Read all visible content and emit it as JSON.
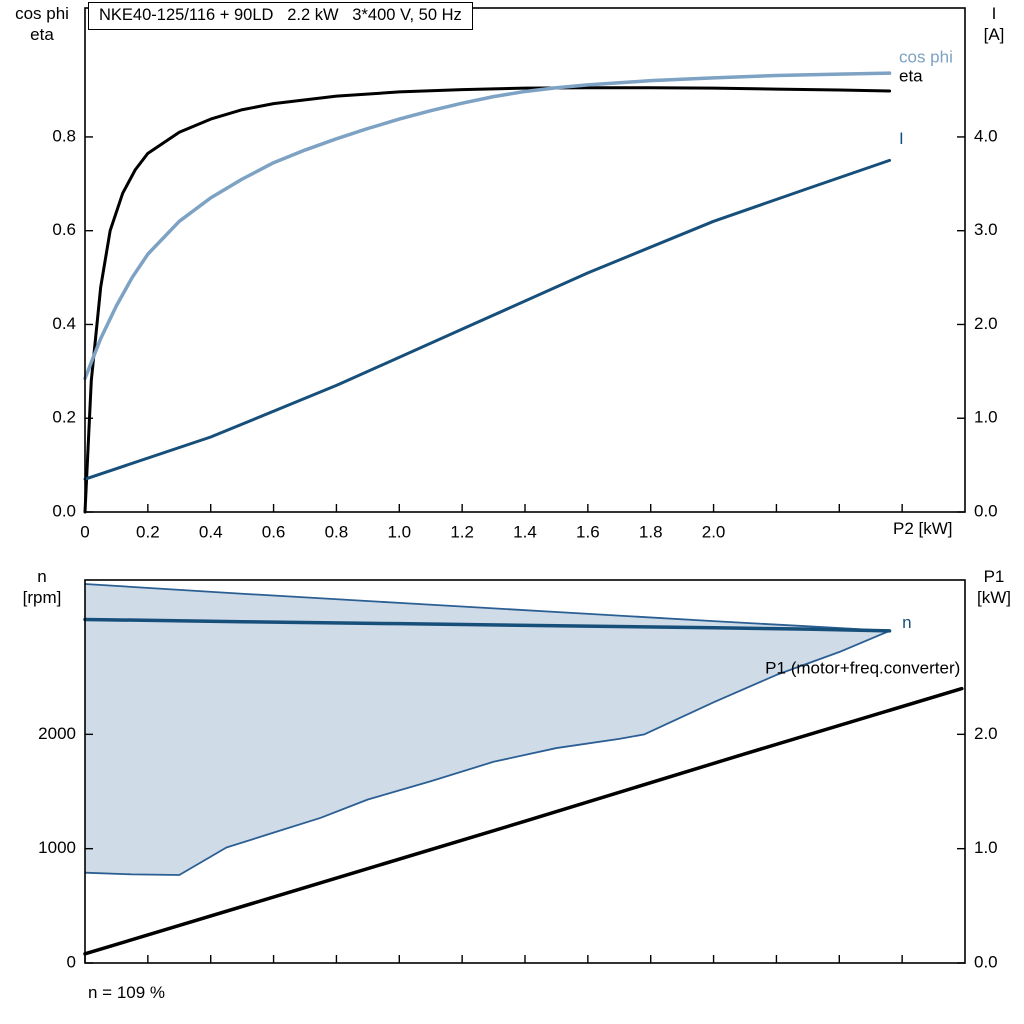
{
  "colors": {
    "eta": "#000000",
    "cos_phi": "#7da2c3",
    "current": "#174f7b",
    "speed": "#174f7b",
    "p1_line": "#000000",
    "band_fill": "#cfdbe7",
    "band_edge": "#2b5f93"
  },
  "chart_data": [
    {
      "type": "line",
      "panel": "motor-efficiency",
      "title": "NKE40-125/116 + 90LD   2.2 kW   3*400 V, 50 Hz",
      "x_axis": {
        "label": "P2 [kW]",
        "min": 0,
        "max": 2.8,
        "ticks": [
          {
            "v": 0,
            "label": "0"
          },
          {
            "v": 0.2,
            "label": "0.2"
          },
          {
            "v": 0.4,
            "label": "0.4"
          },
          {
            "v": 0.6,
            "label": "0.6"
          },
          {
            "v": 0.8,
            "label": "0.8"
          },
          {
            "v": 1.0,
            "label": "1.0"
          },
          {
            "v": 1.2,
            "label": "1.2"
          },
          {
            "v": 1.4,
            "label": "1.4"
          },
          {
            "v": 1.6,
            "label": "1.6"
          },
          {
            "v": 1.8,
            "label": "1.8"
          },
          {
            "v": 2.0,
            "label": "2.0"
          },
          {
            "v": 2.2,
            "label": ""
          },
          {
            "v": 2.4,
            "label": ""
          },
          {
            "v": 2.6,
            "label": ""
          }
        ]
      },
      "y_left": {
        "label_lines": [
          "cos phi",
          "eta"
        ],
        "min": 0,
        "max": 1.075,
        "ticks": [
          {
            "v": 0,
            "label": "0.0"
          },
          {
            "v": 0.2,
            "label": "0.2"
          },
          {
            "v": 0.4,
            "label": "0.4"
          },
          {
            "v": 0.6,
            "label": "0.6"
          },
          {
            "v": 0.8,
            "label": "0.8"
          }
        ]
      },
      "y_right": {
        "label_lines": [
          "I",
          "[A]"
        ],
        "min": 0,
        "max": 5.375,
        "ticks": [
          {
            "v": 0,
            "label": "0.0"
          },
          {
            "v": 1,
            "label": "1.0"
          },
          {
            "v": 2,
            "label": "2.0"
          },
          {
            "v": 3,
            "label": "3.0"
          },
          {
            "v": 4,
            "label": "4.0"
          }
        ]
      },
      "series": [
        {
          "name": "eta",
          "axis": "left",
          "color": "#000000",
          "width": 3,
          "points": [
            [
              0,
              0
            ],
            [
              0.02,
              0.28
            ],
            [
              0.05,
              0.48
            ],
            [
              0.08,
              0.6
            ],
            [
              0.12,
              0.68
            ],
            [
              0.16,
              0.73
            ],
            [
              0.2,
              0.765
            ],
            [
              0.3,
              0.81
            ],
            [
              0.4,
              0.838
            ],
            [
              0.5,
              0.858
            ],
            [
              0.6,
              0.871
            ],
            [
              0.8,
              0.887
            ],
            [
              1.0,
              0.896
            ],
            [
              1.2,
              0.901
            ],
            [
              1.4,
              0.904
            ],
            [
              1.6,
              0.905
            ],
            [
              1.8,
              0.905
            ],
            [
              2.0,
              0.904
            ],
            [
              2.2,
              0.902
            ],
            [
              2.4,
              0.9
            ],
            [
              2.56,
              0.898
            ]
          ]
        },
        {
          "name": "cos phi",
          "axis": "left",
          "color": "#7da2c3",
          "width": 3.5,
          "points": [
            [
              0,
              0.285
            ],
            [
              0.05,
              0.37
            ],
            [
              0.1,
              0.44
            ],
            [
              0.15,
              0.5
            ],
            [
              0.2,
              0.55
            ],
            [
              0.3,
              0.62
            ],
            [
              0.4,
              0.67
            ],
            [
              0.5,
              0.71
            ],
            [
              0.6,
              0.745
            ],
            [
              0.7,
              0.772
            ],
            [
              0.8,
              0.796
            ],
            [
              0.9,
              0.818
            ],
            [
              1.0,
              0.838
            ],
            [
              1.1,
              0.856
            ],
            [
              1.2,
              0.872
            ],
            [
              1.3,
              0.886
            ],
            [
              1.4,
              0.897
            ],
            [
              1.5,
              0.905
            ],
            [
              1.6,
              0.911
            ],
            [
              1.8,
              0.92
            ],
            [
              2.0,
              0.926
            ],
            [
              2.2,
              0.931
            ],
            [
              2.4,
              0.934
            ],
            [
              2.56,
              0.936
            ]
          ]
        },
        {
          "name": "I",
          "axis": "right",
          "color": "#174f7b",
          "width": 3,
          "points": [
            [
              0,
              0.35
            ],
            [
              0.4,
              0.8
            ],
            [
              0.8,
              1.35
            ],
            [
              1.2,
              1.95
            ],
            [
              1.6,
              2.55
            ],
            [
              2.0,
              3.1
            ],
            [
              2.3,
              3.45
            ],
            [
              2.56,
              3.75
            ]
          ]
        }
      ],
      "annotations": [
        {
          "text": "cos phi",
          "x": 2.59,
          "y": 0.968,
          "color": "#7da2c3",
          "anchor": "start",
          "axis": "left"
        },
        {
          "text": "eta",
          "x": 2.59,
          "y": 0.928,
          "color": "#000000",
          "anchor": "start",
          "axis": "left"
        },
        {
          "text": "I",
          "x": 2.59,
          "y": 0.795,
          "color": "#174f7b",
          "anchor": "start",
          "axis": "left"
        }
      ]
    },
    {
      "type": "line",
      "panel": "speed-and-input-power",
      "title": "",
      "footnote": "n = 109 %",
      "x_axis": {
        "label": "",
        "min": 0,
        "max": 2.8,
        "ticks": [
          {
            "v": 0,
            "label": ""
          },
          {
            "v": 0.2,
            "label": ""
          },
          {
            "v": 0.4,
            "label": ""
          },
          {
            "v": 0.6,
            "label": ""
          },
          {
            "v": 0.8,
            "label": ""
          },
          {
            "v": 1.0,
            "label": ""
          },
          {
            "v": 1.2,
            "label": ""
          },
          {
            "v": 1.4,
            "label": ""
          },
          {
            "v": 1.6,
            "label": ""
          },
          {
            "v": 1.8,
            "label": ""
          },
          {
            "v": 2.0,
            "label": ""
          },
          {
            "v": 2.2,
            "label": ""
          },
          {
            "v": 2.4,
            "label": ""
          },
          {
            "v": 2.6,
            "label": ""
          }
        ]
      },
      "y_left": {
        "label_lines": [
          "n",
          "[rpm]"
        ],
        "min": 0,
        "max": 3350,
        "ticks": [
          {
            "v": 0,
            "label": "0"
          },
          {
            "v": 1000,
            "label": "1000"
          },
          {
            "v": 2000,
            "label": "2000"
          }
        ]
      },
      "y_right": {
        "label_lines": [
          "P1",
          "[kW]"
        ],
        "min": 0,
        "max": 3.35,
        "ticks": [
          {
            "v": 0,
            "label": "0.0"
          },
          {
            "v": 1,
            "label": "1.0"
          },
          {
            "v": 2,
            "label": "2.0"
          }
        ]
      },
      "band": {
        "axis": "left",
        "fill": "#cfdbe7",
        "edge": "#2b5f93",
        "upper": [
          [
            0,
            3315
          ],
          [
            0.5,
            3230
          ],
          [
            1.0,
            3150
          ],
          [
            1.5,
            3070
          ],
          [
            2.0,
            2990
          ],
          [
            2.3,
            2945
          ],
          [
            2.56,
            2905
          ]
        ],
        "lower": [
          [
            0,
            790
          ],
          [
            0.15,
            775
          ],
          [
            0.3,
            770
          ],
          [
            0.45,
            1010
          ],
          [
            0.6,
            1140
          ],
          [
            0.75,
            1270
          ],
          [
            0.9,
            1430
          ],
          [
            1.1,
            1590
          ],
          [
            1.3,
            1760
          ],
          [
            1.5,
            1880
          ],
          [
            1.7,
            1960
          ],
          [
            1.78,
            2000
          ],
          [
            2.0,
            2280
          ],
          [
            2.2,
            2520
          ],
          [
            2.4,
            2720
          ],
          [
            2.56,
            2905
          ]
        ]
      },
      "series": [
        {
          "name": "P1 (motor+freq.converter)",
          "axis": "right",
          "color": "#000000",
          "width": 3.5,
          "points": [
            [
              0,
              0.08
            ],
            [
              0.7,
              0.66
            ],
            [
              1.4,
              1.24
            ],
            [
              2.1,
              1.83
            ],
            [
              2.79,
              2.4
            ]
          ]
        },
        {
          "name": "n",
          "axis": "left",
          "color": "#174f7b",
          "width": 3.5,
          "points": [
            [
              0,
              3005
            ],
            [
              0.5,
              2985
            ],
            [
              1.0,
              2968
            ],
            [
              1.5,
              2950
            ],
            [
              2.0,
              2932
            ],
            [
              2.3,
              2920
            ],
            [
              2.56,
              2905
            ]
          ]
        }
      ],
      "annotations": [
        {
          "text": "n",
          "x": 2.6,
          "y": 2970,
          "color": "#174f7b",
          "anchor": "start",
          "axis": "left"
        },
        {
          "text": "P1 (motor+freq.converter)",
          "x": 2.785,
          "y": 2570,
          "color": "#000000",
          "anchor": "end",
          "axis": "left"
        }
      ]
    }
  ]
}
